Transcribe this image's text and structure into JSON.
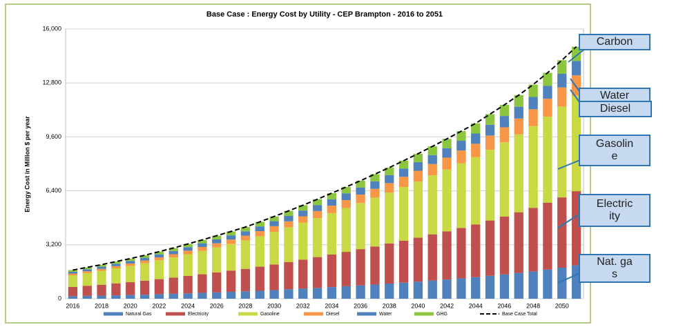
{
  "chart_data": {
    "type": "bar",
    "stacked": true,
    "title": "Base Case : Energy Cost by Utility - CEP Brampton - 2016 to 2051",
    "y_label": "Energy Cost in Million $ per year",
    "categories": [
      "2016",
      null,
      "2018",
      null,
      "2020",
      null,
      "2022",
      null,
      "2024",
      null,
      "2026",
      null,
      "2028",
      null,
      "2030",
      null,
      "2032",
      null,
      "2034",
      null,
      "2036",
      null,
      "2038",
      null,
      "2040",
      null,
      "2042",
      null,
      "2044",
      null,
      "2046",
      null,
      "2048",
      null,
      "2050",
      null
    ],
    "ylim": [
      0,
      16000
    ],
    "yticks": [
      0,
      {
        "value": 3200,
        "label": "3,200"
      },
      {
        "value": 6400,
        "label": "6,400"
      },
      {
        "value": 9600,
        "label": "9,600"
      },
      {
        "value": 12800,
        "label": "12,800"
      },
      {
        "value": 16000,
        "label": "16,000"
      }
    ],
    "grid": true,
    "legend": "bottom",
    "series": [
      {
        "name": "Natural Gas",
        "color": "#4f81bd",
        "values": [
          150,
          170,
          180,
          200,
          220,
          240,
          270,
          290,
          320,
          350,
          380,
          410,
          440,
          470,
          510,
          560,
          600,
          640,
          690,
          740,
          790,
          840,
          900,
          950,
          1010,
          1080,
          1140,
          1210,
          1280,
          1360,
          1440,
          1530,
          1620,
          1730,
          1840,
          1980
        ]
      },
      {
        "name": "Electricity",
        "color": "#c0504d",
        "values": [
          550,
          600,
          650,
          710,
          760,
          830,
          890,
          960,
          1030,
          1100,
          1180,
          1260,
          1330,
          1430,
          1520,
          1620,
          1720,
          1830,
          1930,
          2040,
          2150,
          2260,
          2380,
          2490,
          2610,
          2740,
          2860,
          2990,
          3120,
          3280,
          3430,
          3600,
          3770,
          3970,
          4170,
          4400
        ]
      },
      {
        "name": "Gasoline",
        "color": "#c9d845",
        "values": [
          690,
          750,
          820,
          890,
          960,
          1040,
          1120,
          1200,
          1290,
          1390,
          1490,
          1580,
          1690,
          1800,
          1940,
          2050,
          2190,
          2320,
          2460,
          2600,
          2740,
          2890,
          3010,
          3190,
          3330,
          3500,
          3660,
          3840,
          4000,
          4200,
          4410,
          4620,
          4850,
          5100,
          5390,
          5660
        ]
      },
      {
        "name": "Diesel",
        "color": "#f79646",
        "values": [
          100,
          110,
          120,
          130,
          150,
          160,
          170,
          190,
          210,
          230,
          240,
          260,
          280,
          310,
          330,
          360,
          380,
          410,
          440,
          470,
          500,
          530,
          570,
          600,
          640,
          670,
          710,
          750,
          790,
          840,
          890,
          940,
          1000,
          1060,
          1130,
          1210
        ]
      },
      {
        "name": "Water",
        "color": "#4f81bd",
        "values": [
          110,
          120,
          130,
          140,
          150,
          160,
          180,
          190,
          210,
          220,
          230,
          250,
          260,
          280,
          300,
          320,
          340,
          360,
          380,
          400,
          420,
          440,
          470,
          490,
          510,
          530,
          560,
          580,
          610,
          640,
          670,
          700,
          730,
          770,
          810,
          850
        ]
      },
      {
        "name": "GHG",
        "color": "#8cc63f",
        "values": [
          100,
          110,
          120,
          130,
          140,
          150,
          160,
          180,
          190,
          200,
          220,
          230,
          250,
          270,
          280,
          300,
          320,
          340,
          360,
          380,
          400,
          430,
          450,
          470,
          500,
          520,
          550,
          570,
          600,
          630,
          660,
          690,
          730,
          770,
          810,
          850
        ]
      },
      {
        "name": "Base Case Total",
        "color": "#000000",
        "type": "line",
        "dashed": true,
        "values": [
          1700,
          1860,
          2020,
          2200,
          2380,
          2580,
          2790,
          3010,
          3250,
          3490,
          3740,
          3990,
          4250,
          4560,
          4880,
          5210,
          5550,
          5900,
          6260,
          6630,
          7000,
          7390,
          7780,
          8190,
          8600,
          9040,
          9480,
          9940,
          10400,
          10950,
          11500,
          12080,
          12700,
          13400,
          14150,
          14950
        ]
      }
    ],
    "annotations": [
      {
        "text": "Carbon"
      },
      {
        "text": "Water"
      },
      {
        "text": "Diesel"
      },
      {
        "text": "Gasoline"
      },
      {
        "text": "Electricity"
      },
      {
        "text": "Nat. gas"
      }
    ]
  }
}
